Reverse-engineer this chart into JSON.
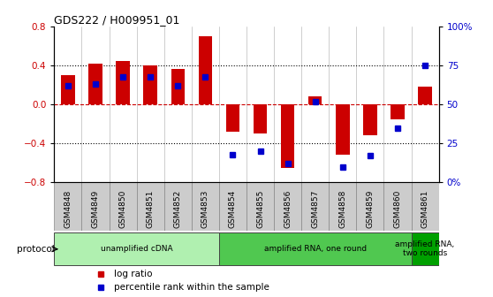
{
  "title": "GDS222 / H009951_01",
  "samples": [
    "GSM4848",
    "GSM4849",
    "GSM4850",
    "GSM4851",
    "GSM4852",
    "GSM4853",
    "GSM4854",
    "GSM4855",
    "GSM4856",
    "GSM4857",
    "GSM4858",
    "GSM4859",
    "GSM4860",
    "GSM4861"
  ],
  "log_ratio": [
    0.3,
    0.42,
    0.45,
    0.4,
    0.37,
    0.7,
    -0.28,
    -0.3,
    -0.65,
    0.08,
    -0.52,
    -0.32,
    -0.15,
    0.18
  ],
  "percentile": [
    62,
    63,
    68,
    68,
    62,
    68,
    18,
    20,
    12,
    52,
    10,
    17,
    35,
    75
  ],
  "bar_color": "#cc0000",
  "dot_color": "#0000cc",
  "ylim": [
    -0.8,
    0.8
  ],
  "y2lim": [
    0,
    100
  ],
  "yticks": [
    -0.8,
    -0.4,
    0.0,
    0.4,
    0.8
  ],
  "y2ticks": [
    0,
    25,
    50,
    75,
    100
  ],
  "y2ticklabels": [
    "0%",
    "25",
    "50",
    "75",
    "100%"
  ],
  "hlines_dotted": [
    0.4,
    -0.4
  ],
  "hline_zero_color": "#cc0000",
  "protocols": [
    {
      "label": "unamplified cDNA",
      "start": 0,
      "end": 5,
      "color": "#b0f0b0"
    },
    {
      "label": "amplified RNA, one round",
      "start": 6,
      "end": 12,
      "color": "#50c850"
    },
    {
      "label": "amplified RNA,\ntwo rounds",
      "start": 13,
      "end": 13,
      "color": "#00a000"
    }
  ],
  "protocol_label": "protocol",
  "legend_items": [
    {
      "color": "#cc0000",
      "label": "log ratio"
    },
    {
      "color": "#0000cc",
      "label": "percentile rank within the sample"
    }
  ],
  "bg_color": "#ffffff",
  "tick_area_color": "#cccccc",
  "bar_width": 0.5,
  "plot_bg": "#ffffff",
  "spine_color": "#000000"
}
